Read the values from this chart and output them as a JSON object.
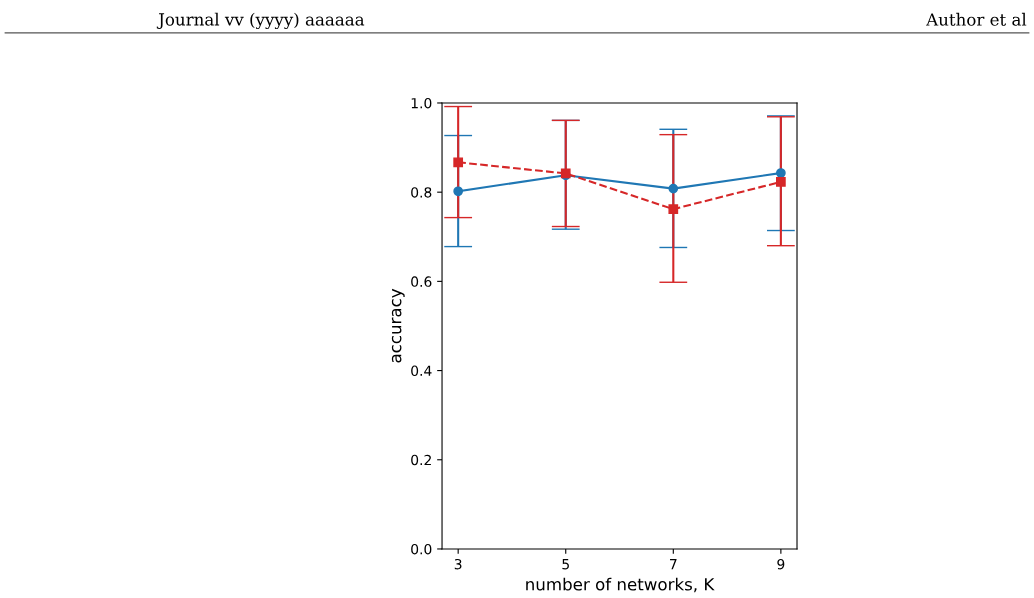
{
  "chart_data": {
    "type": "line",
    "xlabel": "number of networks, K",
    "ylabel": "accuracy",
    "annotations": [
      "Journal vv (yyyy) aaaaaa",
      "Author et al"
    ],
    "x": [
      3,
      5,
      7,
      9
    ],
    "series": [
      {
        "color": "#1f77b4",
        "marker": "circle",
        "line_style": "solid",
        "values": [
          0.802,
          0.838,
          0.808,
          0.843
        ],
        "errors": [
          [
            0.678,
            0.927
          ],
          [
            0.717,
            0.961
          ],
          [
            0.676,
            0.941
          ],
          [
            0.714,
            0.971
          ]
        ]
      },
      {
        "color": "#d62728",
        "marker": "square",
        "line_style": "dashed",
        "values": [
          0.867,
          0.842,
          0.762,
          0.823
        ],
        "errors": [
          [
            0.743,
            0.992
          ],
          [
            0.723,
            0.961
          ],
          [
            0.598,
            0.929
          ],
          [
            0.68,
            0.969
          ]
        ]
      }
    ],
    "xlim": [
      2.7,
      9.3
    ],
    "xticks": [
      3,
      5,
      7,
      9
    ],
    "ylim": [
      0.0,
      1.0
    ],
    "yticks": [
      {
        "value": 0.0,
        "label": "0.0"
      },
      {
        "value": 0.2,
        "label": "0.2"
      },
      {
        "value": 0.4,
        "label": "0.4"
      },
      {
        "value": 0.6,
        "label": "0.6"
      },
      {
        "value": 0.8,
        "label": "0.8"
      },
      {
        "value": 1.0,
        "label": "1.0"
      }
    ],
    "grid": false,
    "legend": false
  }
}
